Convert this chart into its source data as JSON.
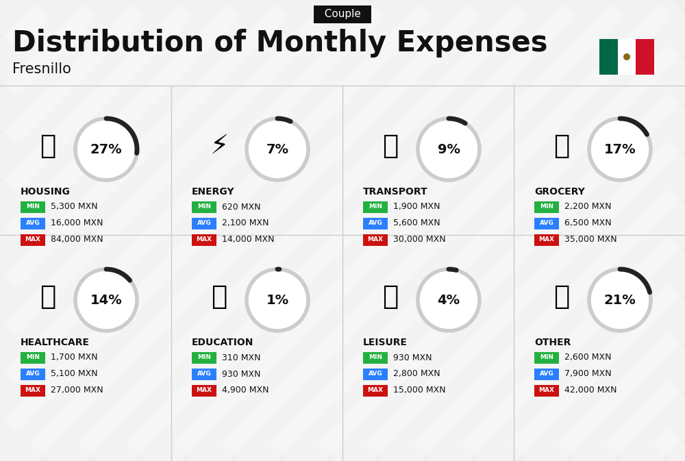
{
  "title": "Distribution of Monthly Expenses",
  "subtitle": "Couple",
  "location": "Fresnillo",
  "bg_color": "#efefef",
  "categories": [
    {
      "name": "HOUSING",
      "pct": 27,
      "min": "5,300 MXN",
      "avg": "16,000 MXN",
      "max": "84,000 MXN",
      "row": 0,
      "col": 0
    },
    {
      "name": "ENERGY",
      "pct": 7,
      "min": "620 MXN",
      "avg": "2,100 MXN",
      "max": "14,000 MXN",
      "row": 0,
      "col": 1
    },
    {
      "name": "TRANSPORT",
      "pct": 9,
      "min": "1,900 MXN",
      "avg": "5,600 MXN",
      "max": "30,000 MXN",
      "row": 0,
      "col": 2
    },
    {
      "name": "GROCERY",
      "pct": 17,
      "min": "2,200 MXN",
      "avg": "6,500 MXN",
      "max": "35,000 MXN",
      "row": 0,
      "col": 3
    },
    {
      "name": "HEALTHCARE",
      "pct": 14,
      "min": "1,700 MXN",
      "avg": "5,100 MXN",
      "max": "27,000 MXN",
      "row": 1,
      "col": 0
    },
    {
      "name": "EDUCATION",
      "pct": 1,
      "min": "310 MXN",
      "avg": "930 MXN",
      "max": "4,900 MXN",
      "row": 1,
      "col": 1
    },
    {
      "name": "LEISURE",
      "pct": 4,
      "min": "930 MXN",
      "avg": "2,800 MXN",
      "max": "15,000 MXN",
      "row": 1,
      "col": 2
    },
    {
      "name": "OTHER",
      "pct": 21,
      "min": "2,600 MXN",
      "avg": "7,900 MXN",
      "max": "42,000 MXN",
      "row": 1,
      "col": 3
    }
  ],
  "min_color": "#22b140",
  "avg_color": "#2a7fff",
  "max_color": "#cc1111",
  "arc_dark": "#222222",
  "arc_light": "#cccccc",
  "text_dark": "#111111",
  "badge_text": "#ffffff",
  "subtitle_bg": "#111111",
  "subtitle_fg": "#ffffff",
  "flag_green": "#006847",
  "flag_white": "#ffffff",
  "flag_red": "#ce1126"
}
